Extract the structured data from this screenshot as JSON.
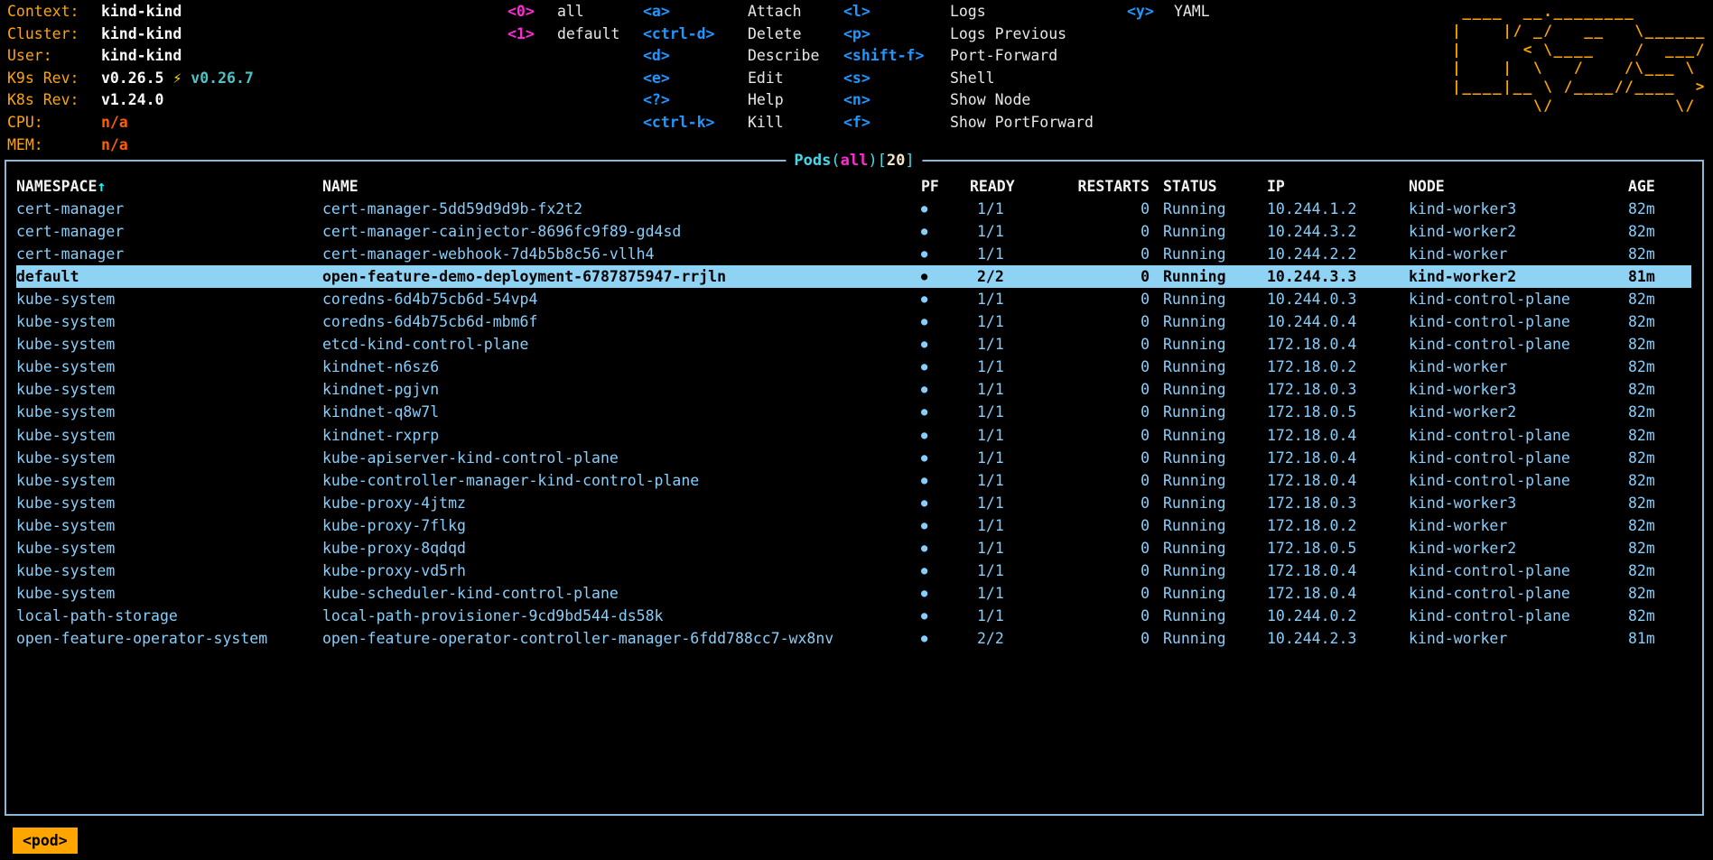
{
  "colors": {
    "accent_orange": "#ffa500",
    "alert_orange": "#ff5f00",
    "key_blue": "#2096ff",
    "key_magenta": "#ff2ad5",
    "row_blue": "#87cefa",
    "selected_bg": "#8ed2f4",
    "border_blue": "#8cb8d8",
    "upgrade_teal": "#4fc3c3",
    "title_cyan": "#43d9e8"
  },
  "cluster_info": [
    {
      "label": "Context:",
      "value": "kind-kind",
      "tone": "",
      "bolt": "",
      "upgrade": ""
    },
    {
      "label": "Cluster:",
      "value": "kind-kind",
      "tone": "",
      "bolt": "",
      "upgrade": ""
    },
    {
      "label": "User:",
      "value": "kind-kind",
      "tone": "",
      "bolt": "",
      "upgrade": ""
    },
    {
      "label": "K9s Rev:",
      "value": "v0.26.5 ",
      "tone": "",
      "bolt": "⚡",
      "upgrade": "v0.26.7"
    },
    {
      "label": "K8s Rev:",
      "value": "v1.24.0",
      "tone": "",
      "bolt": "",
      "upgrade": ""
    },
    {
      "label": "CPU:",
      "value": "n/a",
      "tone": "alert",
      "bolt": "",
      "upgrade": ""
    },
    {
      "label": "MEM:",
      "value": "n/a",
      "tone": "alert",
      "bolt": "",
      "upgrade": ""
    }
  ],
  "namespace_hotkeys": [
    {
      "key": "<0>",
      "label": "all"
    },
    {
      "key": "<1>",
      "label": "default"
    }
  ],
  "action_hotkeys_col1": [
    {
      "key": "<a>",
      "label": "Attach"
    },
    {
      "key": "<ctrl-d>",
      "label": "Delete"
    },
    {
      "key": "<d>",
      "label": "Describe"
    },
    {
      "key": "<e>",
      "label": "Edit"
    },
    {
      "key": "<?>",
      "label": "Help"
    },
    {
      "key": "<ctrl-k>",
      "label": "Kill"
    }
  ],
  "action_hotkeys_col2": [
    {
      "key": "<l>",
      "label": "Logs"
    },
    {
      "key": "<p>",
      "label": "Logs Previous"
    },
    {
      "key": "<shift-f>",
      "label": "Port-Forward"
    },
    {
      "key": "<s>",
      "label": "Shell"
    },
    {
      "key": "<n>",
      "label": "Show Node"
    },
    {
      "key": "<f>",
      "label": "Show PortForward"
    }
  ],
  "action_hotkeys_col3": [
    {
      "key": "<y>",
      "label": "YAML"
    }
  ],
  "logo_lines": [
    " ____  __.________",
    "|    |/ _/   __   \\______",
    "|      < \\____    /  ___/",
    "|    |  \\   /    /\\___ \\",
    "|____|__ \\ /____//____  >",
    "        \\/            \\/"
  ],
  "table": {
    "title": {
      "resource": "Pods",
      "open_paren": "(",
      "filter": "all",
      "close_paren": ")",
      "open_bracket": "[",
      "count": "20",
      "close_bracket": "]"
    },
    "sort_arrow": "↑",
    "columns": {
      "namespace": "NAMESPACE",
      "name": "NAME",
      "pf": "PF",
      "ready": "READY",
      "restarts": "RESTARTS",
      "status": "STATUS",
      "ip": "IP",
      "node": "NODE",
      "age": "AGE"
    },
    "rows": [
      {
        "namespace": "cert-manager",
        "name": "cert-manager-5dd59d9d9b-fx2t2",
        "pf": "●",
        "ready": "1/1",
        "restarts": "0",
        "status": "Running",
        "ip": "10.244.1.2",
        "node": "kind-worker3",
        "age": "82m",
        "state": ""
      },
      {
        "namespace": "cert-manager",
        "name": "cert-manager-cainjector-8696fc9f89-gd4sd",
        "pf": "●",
        "ready": "1/1",
        "restarts": "0",
        "status": "Running",
        "ip": "10.244.3.2",
        "node": "kind-worker2",
        "age": "82m",
        "state": ""
      },
      {
        "namespace": "cert-manager",
        "name": "cert-manager-webhook-7d4b5b8c56-vllh4",
        "pf": "●",
        "ready": "1/1",
        "restarts": "0",
        "status": "Running",
        "ip": "10.244.2.2",
        "node": "kind-worker",
        "age": "82m",
        "state": ""
      },
      {
        "namespace": "default",
        "name": "open-feature-demo-deployment-6787875947-rrjln",
        "pf": "●",
        "ready": "2/2",
        "restarts": "0",
        "status": "Running",
        "ip": "10.244.3.3",
        "node": "kind-worker2",
        "age": "81m",
        "state": "selected"
      },
      {
        "namespace": "kube-system",
        "name": "coredns-6d4b75cb6d-54vp4",
        "pf": "●",
        "ready": "1/1",
        "restarts": "0",
        "status": "Running",
        "ip": "10.244.0.3",
        "node": "kind-control-plane",
        "age": "82m",
        "state": ""
      },
      {
        "namespace": "kube-system",
        "name": "coredns-6d4b75cb6d-mbm6f",
        "pf": "●",
        "ready": "1/1",
        "restarts": "0",
        "status": "Running",
        "ip": "10.244.0.4",
        "node": "kind-control-plane",
        "age": "82m",
        "state": ""
      },
      {
        "namespace": "kube-system",
        "name": "etcd-kind-control-plane",
        "pf": "●",
        "ready": "1/1",
        "restarts": "0",
        "status": "Running",
        "ip": "172.18.0.4",
        "node": "kind-control-plane",
        "age": "82m",
        "state": ""
      },
      {
        "namespace": "kube-system",
        "name": "kindnet-n6sz6",
        "pf": "●",
        "ready": "1/1",
        "restarts": "0",
        "status": "Running",
        "ip": "172.18.0.2",
        "node": "kind-worker",
        "age": "82m",
        "state": ""
      },
      {
        "namespace": "kube-system",
        "name": "kindnet-pgjvn",
        "pf": "●",
        "ready": "1/1",
        "restarts": "0",
        "status": "Running",
        "ip": "172.18.0.3",
        "node": "kind-worker3",
        "age": "82m",
        "state": ""
      },
      {
        "namespace": "kube-system",
        "name": "kindnet-q8w7l",
        "pf": "●",
        "ready": "1/1",
        "restarts": "0",
        "status": "Running",
        "ip": "172.18.0.5",
        "node": "kind-worker2",
        "age": "82m",
        "state": ""
      },
      {
        "namespace": "kube-system",
        "name": "kindnet-rxprp",
        "pf": "●",
        "ready": "1/1",
        "restarts": "0",
        "status": "Running",
        "ip": "172.18.0.4",
        "node": "kind-control-plane",
        "age": "82m",
        "state": ""
      },
      {
        "namespace": "kube-system",
        "name": "kube-apiserver-kind-control-plane",
        "pf": "●",
        "ready": "1/1",
        "restarts": "0",
        "status": "Running",
        "ip": "172.18.0.4",
        "node": "kind-control-plane",
        "age": "82m",
        "state": ""
      },
      {
        "namespace": "kube-system",
        "name": "kube-controller-manager-kind-control-plane",
        "pf": "●",
        "ready": "1/1",
        "restarts": "0",
        "status": "Running",
        "ip": "172.18.0.4",
        "node": "kind-control-plane",
        "age": "82m",
        "state": ""
      },
      {
        "namespace": "kube-system",
        "name": "kube-proxy-4jtmz",
        "pf": "●",
        "ready": "1/1",
        "restarts": "0",
        "status": "Running",
        "ip": "172.18.0.3",
        "node": "kind-worker3",
        "age": "82m",
        "state": ""
      },
      {
        "namespace": "kube-system",
        "name": "kube-proxy-7flkg",
        "pf": "●",
        "ready": "1/1",
        "restarts": "0",
        "status": "Running",
        "ip": "172.18.0.2",
        "node": "kind-worker",
        "age": "82m",
        "state": ""
      },
      {
        "namespace": "kube-system",
        "name": "kube-proxy-8qdqd",
        "pf": "●",
        "ready": "1/1",
        "restarts": "0",
        "status": "Running",
        "ip": "172.18.0.5",
        "node": "kind-worker2",
        "age": "82m",
        "state": ""
      },
      {
        "namespace": "kube-system",
        "name": "kube-proxy-vd5rh",
        "pf": "●",
        "ready": "1/1",
        "restarts": "0",
        "status": "Running",
        "ip": "172.18.0.4",
        "node": "kind-control-plane",
        "age": "82m",
        "state": ""
      },
      {
        "namespace": "kube-system",
        "name": "kube-scheduler-kind-control-plane",
        "pf": "●",
        "ready": "1/1",
        "restarts": "0",
        "status": "Running",
        "ip": "172.18.0.4",
        "node": "kind-control-plane",
        "age": "82m",
        "state": ""
      },
      {
        "namespace": "local-path-storage",
        "name": "local-path-provisioner-9cd9bd544-ds58k",
        "pf": "●",
        "ready": "1/1",
        "restarts": "0",
        "status": "Running",
        "ip": "10.244.0.2",
        "node": "kind-control-plane",
        "age": "82m",
        "state": ""
      },
      {
        "namespace": "open-feature-operator-system",
        "name": "open-feature-operator-controller-manager-6fdd788cc7-wx8nv",
        "pf": "●",
        "ready": "2/2",
        "restarts": "0",
        "status": "Running",
        "ip": "10.244.2.3",
        "node": "kind-worker",
        "age": "81m",
        "state": ""
      }
    ]
  },
  "footer": {
    "crumb": "<pod>"
  }
}
